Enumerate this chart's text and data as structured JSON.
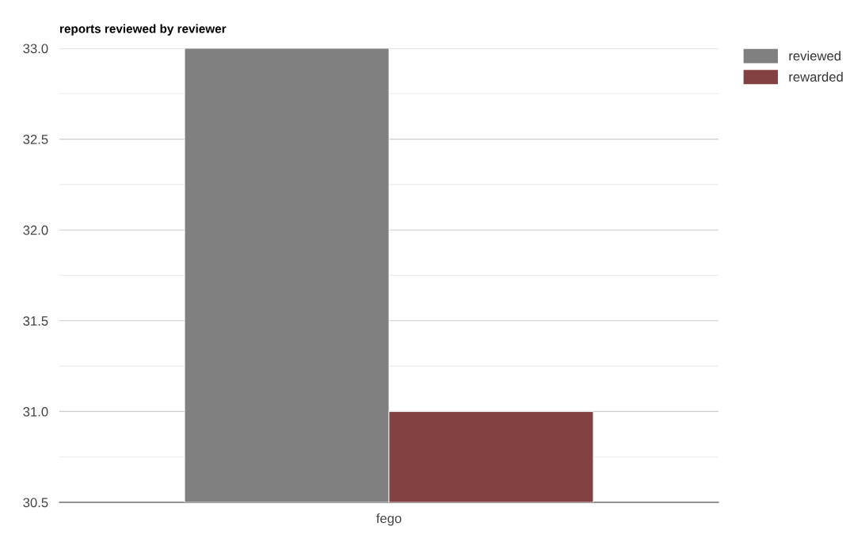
{
  "chart_data": {
    "type": "bar",
    "title": "reports reviewed by reviewer",
    "categories": [
      "fego"
    ],
    "series": [
      {
        "name": "reviewed",
        "color": "#808080",
        "values": [
          33
        ]
      },
      {
        "name": "rewarded",
        "color": "#834141",
        "values": [
          31
        ]
      }
    ],
    "ylim": [
      30.5,
      33
    ],
    "yticks": [
      {
        "value": 30.5,
        "label": "30.5"
      },
      {
        "value": 31,
        "label": "31.0"
      },
      {
        "value": 31.5,
        "label": "31.5"
      },
      {
        "value": 32,
        "label": "32.0"
      },
      {
        "value": 32.5,
        "label": "32.5"
      },
      {
        "value": 33,
        "label": "33.0"
      }
    ],
    "grid": "y",
    "legend": "top right"
  }
}
